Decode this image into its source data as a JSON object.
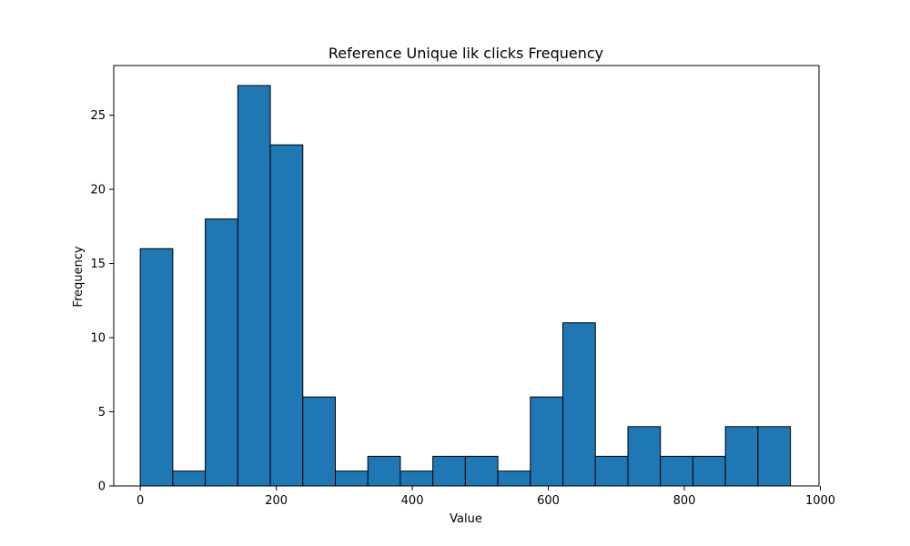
{
  "chart_data": {
    "type": "bar",
    "title": "Reference Unique lik clicks Frequency",
    "xlabel": "Value",
    "ylabel": "Frequency",
    "xlim": [
      -39,
      998
    ],
    "ylim": [
      0,
      28.35
    ],
    "x_ticks": [
      0,
      200,
      400,
      600,
      800,
      1000
    ],
    "y_ticks": [
      0,
      5,
      10,
      15,
      20,
      25
    ],
    "bins": [
      {
        "start": 0,
        "end": 47.8,
        "count": 16
      },
      {
        "start": 47.8,
        "end": 95.6,
        "count": 1
      },
      {
        "start": 95.6,
        "end": 143.4,
        "count": 18
      },
      {
        "start": 143.4,
        "end": 191.2,
        "count": 27
      },
      {
        "start": 191.2,
        "end": 239.0,
        "count": 23
      },
      {
        "start": 239.0,
        "end": 286.8,
        "count": 6
      },
      {
        "start": 286.8,
        "end": 334.6,
        "count": 1
      },
      {
        "start": 334.6,
        "end": 382.4,
        "count": 2
      },
      {
        "start": 382.4,
        "end": 430.2,
        "count": 1
      },
      {
        "start": 430.2,
        "end": 478.0,
        "count": 2
      },
      {
        "start": 478.0,
        "end": 525.8,
        "count": 2
      },
      {
        "start": 525.8,
        "end": 573.6,
        "count": 1
      },
      {
        "start": 573.6,
        "end": 621.4,
        "count": 6
      },
      {
        "start": 621.4,
        "end": 669.2,
        "count": 11
      },
      {
        "start": 669.2,
        "end": 717.0,
        "count": 2
      },
      {
        "start": 717.0,
        "end": 764.8,
        "count": 4
      },
      {
        "start": 764.8,
        "end": 812.6,
        "count": 2
      },
      {
        "start": 812.6,
        "end": 860.4,
        "count": 2
      },
      {
        "start": 860.4,
        "end": 908.2,
        "count": 4
      },
      {
        "start": 908.2,
        "end": 956.0,
        "count": 4
      }
    ],
    "bar_color": "#1f77b4",
    "edge_color": "#000000",
    "grid": false,
    "legend": "none"
  }
}
